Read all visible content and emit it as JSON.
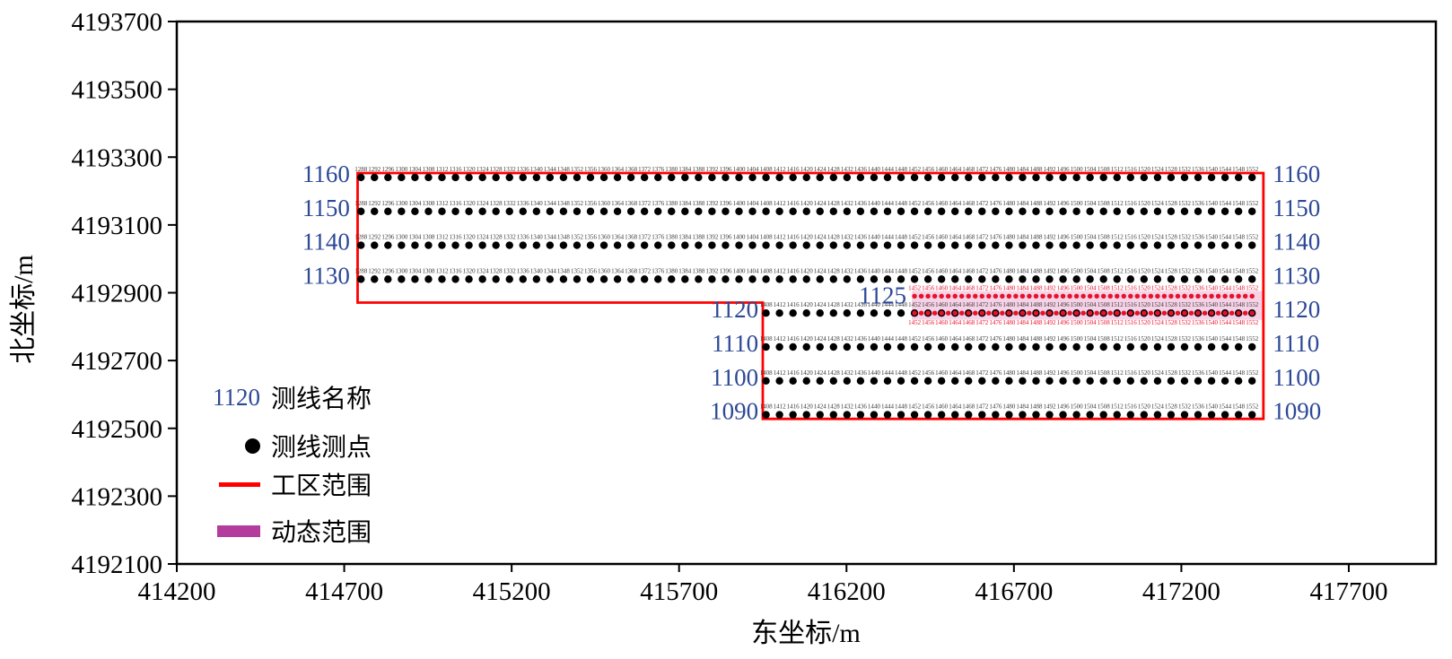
{
  "figure": {
    "xlabel": "东坐标/m",
    "ylabel": "北坐标/m"
  },
  "chart_data": {
    "type": "scatter",
    "title": "",
    "xlabel": "东坐标/m",
    "ylabel": "北坐标/m",
    "xlim": [
      414200,
      417960
    ],
    "ylim": [
      4192100,
      4193700
    ],
    "x_ticks": [
      414200,
      414700,
      415200,
      415700,
      416200,
      416700,
      417200,
      417700
    ],
    "y_ticks": [
      4193700,
      4193500,
      4193300,
      4193100,
      4192900,
      4192700,
      4192500,
      4192300,
      4192100
    ],
    "station_axis": {
      "origin_station": 1288,
      "east_at_origin": 414750,
      "meters_per_unit": 10.08
    },
    "station_step": 4,
    "survey_lines": [
      {
        "name": "1160",
        "north": 4193240,
        "station_start": 1288,
        "station_end": 1552,
        "left_anchor": "upper_left"
      },
      {
        "name": "1150",
        "north": 4193140,
        "station_start": 1288,
        "station_end": 1552,
        "left_anchor": "upper_left"
      },
      {
        "name": "1140",
        "north": 4193040,
        "station_start": 1288,
        "station_end": 1552,
        "left_anchor": "upper_left"
      },
      {
        "name": "1130",
        "north": 4192940,
        "station_start": 1288,
        "station_end": 1552,
        "left_anchor": "upper_left"
      },
      {
        "name": "1120",
        "north": 4192840,
        "station_start": 1408,
        "station_end": 1552,
        "left_anchor": "lower_left"
      },
      {
        "name": "1110",
        "north": 4192740,
        "station_start": 1408,
        "station_end": 1552,
        "left_anchor": "lower_left"
      },
      {
        "name": "1100",
        "north": 4192640,
        "station_start": 1408,
        "station_end": 1552,
        "left_anchor": "lower_left"
      },
      {
        "name": "1090",
        "north": 4192540,
        "station_start": 1408,
        "station_end": 1552,
        "left_anchor": "lower_left"
      }
    ],
    "dynamic_line": {
      "name": "1125",
      "north": 4192890,
      "station_start": 1452,
      "station_end": 1552,
      "dot_step": 2,
      "label_step": 4
    },
    "dynamic_overlay": {
      "line": "1120",
      "north": 4192840,
      "station_start": 1452,
      "station_end": 1552,
      "dot_step": 2,
      "label_step": 4
    },
    "work_area": [
      [
        414740,
        4193253
      ],
      [
        417445,
        4193253
      ],
      [
        417445,
        4192528
      ],
      [
        415950,
        4192528
      ],
      [
        415950,
        4192871
      ],
      [
        414740,
        4192871
      ]
    ],
    "dynamic_band": {
      "east": [
        416395,
        417445
      ],
      "north": [
        4192820,
        4192905
      ]
    },
    "line_label_east": {
      "upper_left": 414717,
      "lower_left": 415937,
      "right": 417473,
      "dynamic_left": 416379
    }
  },
  "legend": {
    "items": [
      {
        "marker": "line-name-sample",
        "sample": "1120",
        "label": "测线名称"
      },
      {
        "marker": "station-dot",
        "label": "测线测点"
      },
      {
        "marker": "work-area-line",
        "label": "工区范围"
      },
      {
        "marker": "dynamic-range-bar",
        "label": "动态范围"
      }
    ]
  },
  "colors": {
    "line_label_blue": "#2c4896",
    "station_label": "#3a3a3a",
    "dot_black": "#000000",
    "work_area_red": "#ff0000",
    "dynamic_red": "#e8112a",
    "dynamic_band_pink": "#f5d2e6",
    "legend_magenta": "#b43c9c",
    "axis_black": "#000000"
  }
}
